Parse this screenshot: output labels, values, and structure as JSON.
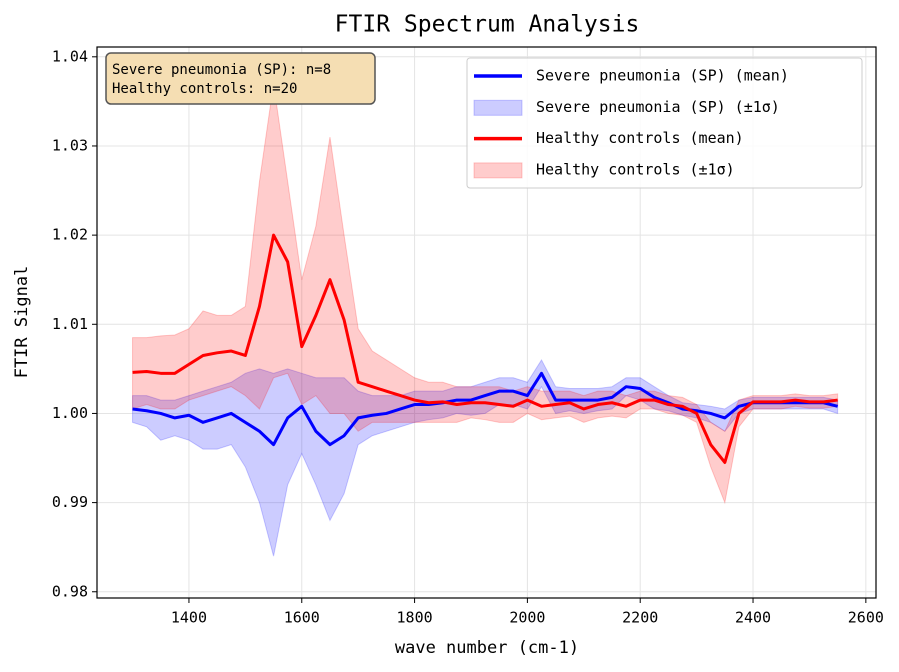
{
  "chart_data": {
    "type": "line",
    "title": "FTIR Spectrum Analysis",
    "xlabel": "wave number (cm-1)",
    "ylabel": "FTIR Signal",
    "annotation": [
      "Severe pneumonia (SP): n=8",
      "Healthy controls: n=20"
    ],
    "xlim": [
      1237,
      2618
    ],
    "ylim": [
      0.9793,
      1.0411
    ],
    "xticks": [
      1400,
      1600,
      1800,
      2000,
      2200,
      2400,
      2600
    ],
    "yticks": [
      0.98,
      0.99,
      {
        "value": 1,
        "label": "1.00"
      },
      1.01,
      1.02,
      1.03,
      1.04
    ],
    "grid": true,
    "legend": "upper right",
    "x": [
      1300,
      1325,
      1350,
      1375,
      1400,
      1425,
      1450,
      1475,
      1500,
      1525,
      1550,
      1575,
      1600,
      1625,
      1650,
      1675,
      1700,
      1725,
      1750,
      1775,
      1800,
      1825,
      1850,
      1875,
      1900,
      1925,
      1950,
      1975,
      2000,
      2025,
      2050,
      2075,
      2100,
      2125,
      2150,
      2175,
      2200,
      2225,
      2250,
      2275,
      2300,
      2325,
      2350,
      2375,
      2400,
      2425,
      2450,
      2475,
      2500,
      2525,
      2550
    ],
    "series": [
      {
        "name": "Severe pneumonia (SP) (mean)",
        "color": "#0000ff",
        "values": [
          1.0005,
          1.0003,
          1.0,
          0.9995,
          0.9998,
          0.999,
          0.9995,
          1.0,
          0.999,
          0.998,
          0.9965,
          0.9995,
          1.0008,
          0.998,
          0.9965,
          0.9975,
          0.9995,
          0.9998,
          1.0,
          1.0005,
          1.001,
          1.001,
          1.0012,
          1.0015,
          1.0015,
          1.002,
          1.0025,
          1.0025,
          1.002,
          1.0045,
          1.0015,
          1.0015,
          1.0015,
          1.0015,
          1.0018,
          1.003,
          1.0028,
          1.0018,
          1.0012,
          1.0005,
          1.0003,
          1.0,
          0.9995,
          1.0008,
          1.0012,
          1.0012,
          1.0012,
          1.0012,
          1.0012,
          1.0012,
          1.0008
        ]
      },
      {
        "name": "Severe pneumonia (SP) (±1σ)",
        "color": "#0000ff",
        "opacity": 0.2,
        "lower": [
          0.999,
          0.9985,
          0.997,
          0.9975,
          0.997,
          0.996,
          0.996,
          0.9965,
          0.994,
          0.99,
          0.984,
          0.992,
          0.9955,
          0.992,
          0.988,
          0.991,
          0.9965,
          0.9975,
          0.998,
          0.9985,
          0.999,
          0.9993,
          0.9995,
          1.0,
          0.9998,
          1.0,
          1.001,
          1.001,
          1.0005,
          1.003,
          1.0,
          1.0003,
          1.0,
          1.0003,
          1.0005,
          1.002,
          1.0015,
          1.0005,
          1.0003,
          0.9998,
          0.9995,
          0.999,
          0.998,
          1.0,
          1.0005,
          1.0005,
          1.0005,
          1.0005,
          1.0005,
          1.0005,
          1.0
        ],
        "upper": [
          1.002,
          1.002,
          1.0015,
          1.0015,
          1.002,
          1.0025,
          1.003,
          1.0035,
          1.0045,
          1.005,
          1.0045,
          1.005,
          1.0045,
          1.004,
          1.004,
          1.004,
          1.0025,
          1.002,
          1.002,
          1.002,
          1.0025,
          1.0025,
          1.0025,
          1.003,
          1.003,
          1.0035,
          1.004,
          1.004,
          1.0035,
          1.006,
          1.003,
          1.0028,
          1.0028,
          1.0028,
          1.003,
          1.004,
          1.004,
          1.003,
          1.002,
          1.0012,
          1.001,
          1.0008,
          1.0005,
          1.0015,
          1.0018,
          1.0018,
          1.0018,
          1.0018,
          1.0018,
          1.0018,
          1.0015
        ]
      },
      {
        "name": "Healthy controls (mean)",
        "color": "#ff0000",
        "values": [
          1.0046,
          1.0047,
          1.0045,
          1.0045,
          1.0055,
          1.0065,
          1.0068,
          1.007,
          1.0065,
          1.012,
          1.02,
          1.017,
          1.0075,
          1.011,
          1.015,
          1.0105,
          1.0035,
          1.003,
          1.0025,
          1.002,
          1.0015,
          1.0012,
          1.0013,
          1.001,
          1.0012,
          1.0012,
          1.001,
          1.0008,
          1.0015,
          1.0008,
          1.001,
          1.0012,
          1.0005,
          1.001,
          1.0012,
          1.0008,
          1.0015,
          1.0015,
          1.001,
          1.0008,
          1.0,
          0.9965,
          0.9945,
          1.0,
          1.0013,
          1.0013,
          1.0013,
          1.0015,
          1.0013,
          1.0013,
          1.0015
        ]
      },
      {
        "name": "Healthy controls (±1σ)",
        "color": "#ff0000",
        "opacity": 0.2,
        "lower": [
          1.0005,
          1.001,
          1.0005,
          1.0005,
          1.0015,
          1.002,
          1.0025,
          1.003,
          1.002,
          1.0005,
          1.004,
          1.0045,
          1.001,
          1.002,
          1.0,
          1.0,
          0.998,
          0.999,
          0.999,
          0.999,
          0.999,
          0.999,
          0.999,
          0.999,
          0.9995,
          0.9993,
          0.999,
          0.999,
          1.0,
          0.9993,
          0.9995,
          0.9997,
          0.999,
          0.9995,
          0.9997,
          0.9995,
          1.0005,
          1.0005,
          1.0,
          0.9998,
          0.999,
          0.994,
          0.99,
          0.9985,
          1.0005,
          1.0005,
          1.0005,
          1.0008,
          1.0006,
          1.0006,
          1.0008
        ],
        "upper": [
          1.0085,
          1.0085,
          1.0087,
          1.0088,
          1.0095,
          1.0115,
          1.011,
          1.011,
          1.012,
          1.026,
          1.037,
          1.026,
          1.015,
          1.021,
          1.031,
          1.02,
          1.0095,
          1.007,
          1.006,
          1.005,
          1.004,
          1.0035,
          1.0035,
          1.003,
          1.003,
          1.003,
          1.003,
          1.0025,
          1.003,
          1.0025,
          1.0025,
          1.0025,
          1.002,
          1.0025,
          1.0025,
          1.002,
          1.0025,
          1.0025,
          1.002,
          1.0018,
          1.001,
          0.999,
          0.998,
          1.0015,
          1.002,
          1.002,
          1.002,
          1.0022,
          1.002,
          1.002,
          1.0022
        ]
      }
    ]
  }
}
